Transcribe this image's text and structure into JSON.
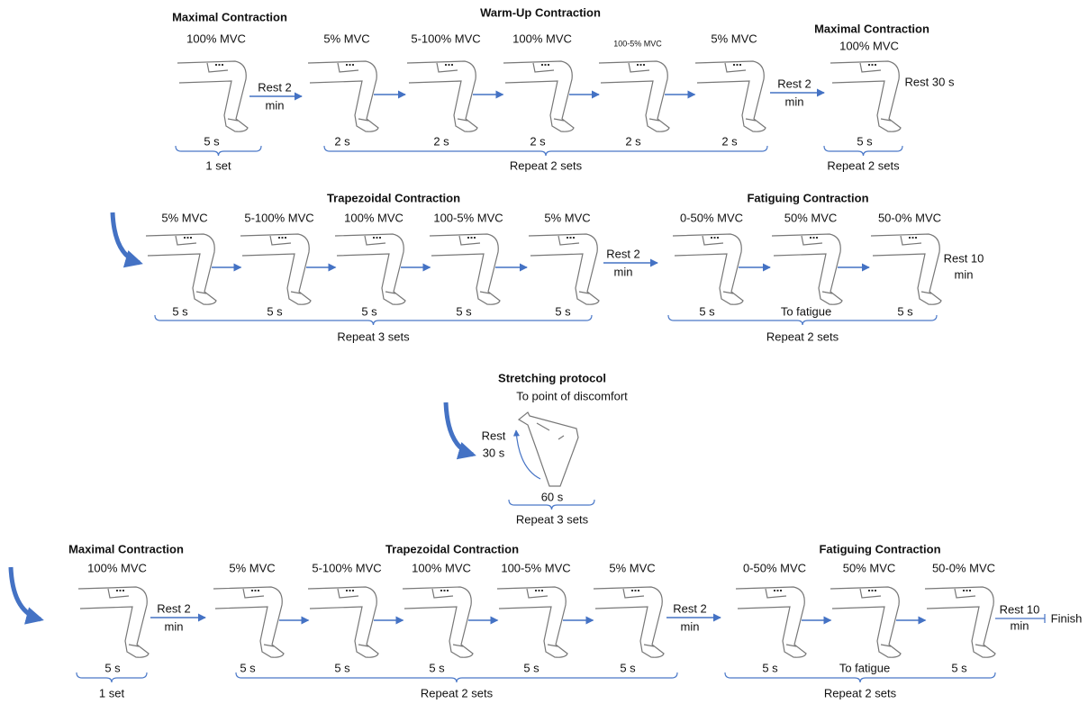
{
  "rows": [
    {
      "groups": [
        {
          "title": "Maximal Contraction",
          "steps": [
            {
              "label": "100% MVC",
              "duration": "5 s"
            }
          ],
          "repeat": "1 set"
        },
        {
          "title": "Warm-Up Contraction",
          "steps": [
            {
              "label": "5% MVC",
              "duration": "2 s"
            },
            {
              "label": "5-100% MVC",
              "duration": "2 s"
            },
            {
              "label": "100% MVC",
              "duration": "2 s"
            },
            {
              "label": "100-5% MVC",
              "duration": "2 s"
            },
            {
              "label": "5% MVC",
              "duration": "2 s"
            }
          ],
          "repeat": "Repeat 2 sets"
        },
        {
          "title": "Maximal Contraction",
          "steps": [
            {
              "label": "100% MVC",
              "duration": "5 s"
            }
          ],
          "repeat": "Repeat 2 sets",
          "rest": "Rest 30 s"
        }
      ],
      "rests": [
        {
          "text": "Rest 2",
          "unit": "min"
        },
        {
          "text": "Rest 2",
          "unit": "min"
        }
      ]
    },
    {
      "groups": [
        {
          "title": "Trapezoidal Contraction",
          "steps": [
            {
              "label": "5% MVC",
              "duration": "5 s"
            },
            {
              "label": "5-100% MVC",
              "duration": "5 s"
            },
            {
              "label": "100% MVC",
              "duration": "5 s"
            },
            {
              "label": "100-5% MVC",
              "duration": "5 s"
            },
            {
              "label": "5% MVC",
              "duration": "5 s"
            }
          ],
          "repeat": "Repeat 3 sets"
        },
        {
          "title": "Fatiguing Contraction",
          "steps": [
            {
              "label": "0-50% MVC",
              "duration": "5 s"
            },
            {
              "label": "50% MVC",
              "duration": "To fatigue"
            },
            {
              "label": "50-0% MVC",
              "duration": "5 s"
            }
          ],
          "repeat": "Repeat 2 sets"
        }
      ],
      "rests": [
        {
          "text": "Rest 2",
          "unit": "min"
        }
      ],
      "end_rest": {
        "text": "Rest 10",
        "unit": "min"
      }
    },
    {
      "groups": [
        {
          "title": "Maximal Contraction",
          "steps": [
            {
              "label": "100% MVC",
              "duration": "5 s"
            }
          ],
          "repeat": "1 set"
        },
        {
          "title": "Trapezoidal Contraction",
          "steps": [
            {
              "label": "5% MVC",
              "duration": "5 s"
            },
            {
              "label": "5-100% MVC",
              "duration": "5 s"
            },
            {
              "label": "100% MVC",
              "duration": "5 s"
            },
            {
              "label": "100-5% MVC",
              "duration": "5 s"
            },
            {
              "label": "5% MVC",
              "duration": "5 s"
            }
          ],
          "repeat": "Repeat 2 sets"
        },
        {
          "title": "Fatiguing Contraction",
          "steps": [
            {
              "label": "0-50% MVC",
              "duration": "5 s"
            },
            {
              "label": "50% MVC",
              "duration": "To fatigue"
            },
            {
              "label": "50-0% MVC",
              "duration": "5 s"
            }
          ],
          "repeat": "Repeat 2 sets"
        }
      ],
      "rests": [
        {
          "text": "Rest 2",
          "unit": "min"
        },
        {
          "text": "Rest 2",
          "unit": "min"
        }
      ],
      "end_rest": {
        "text": "Rest 10",
        "unit": "min"
      },
      "finish": "Finish"
    }
  ],
  "stretching": {
    "title": "Stretching protocol",
    "subtitle": "To point of discomfort",
    "rest": {
      "text": "Rest",
      "unit": "30 s"
    },
    "duration": "60 s",
    "repeat": "Repeat 3 sets"
  }
}
